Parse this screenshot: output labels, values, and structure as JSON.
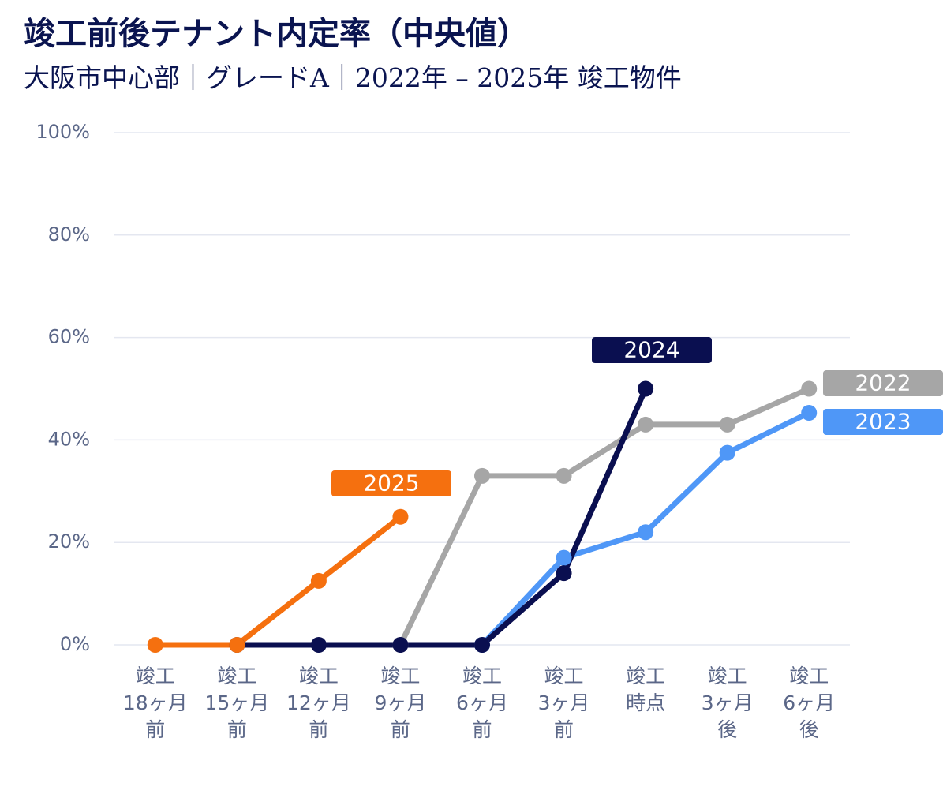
{
  "chart_data": {
    "type": "line",
    "title": "竣工前後テナント内定率（中央値）",
    "subtitle": "大阪市中心部｜グレードA｜2022年 – 2025年 竣工物件",
    "categories": [
      [
        "竣工",
        "18ヶ月",
        "前"
      ],
      [
        "竣工",
        "15ヶ月",
        "前"
      ],
      [
        "竣工",
        "12ヶ月",
        "前"
      ],
      [
        "竣工",
        "9ヶ月",
        "前"
      ],
      [
        "竣工",
        "6ヶ月",
        "前"
      ],
      [
        "竣工",
        "3ヶ月",
        "前"
      ],
      [
        "竣工",
        "時点"
      ],
      [
        "竣工",
        "3ヶ月",
        "後"
      ],
      [
        "竣工",
        "6ヶ月",
        "後"
      ]
    ],
    "series": [
      {
        "name": "2022",
        "color": "#a6a6a6",
        "values": [
          null,
          null,
          null,
          0,
          33,
          33,
          43,
          43,
          50
        ]
      },
      {
        "name": "2023",
        "color": "#4f97f7",
        "values": [
          null,
          null,
          null,
          null,
          0,
          17,
          22,
          37.5,
          45.3
        ]
      },
      {
        "name": "2024",
        "color": "#0a0f50",
        "values": [
          null,
          0,
          0,
          0,
          0,
          14,
          50,
          null,
          null
        ]
      },
      {
        "name": "2025",
        "color": "#f5700f",
        "values": [
          0,
          0,
          12.5,
          25,
          null,
          null,
          null,
          null,
          null
        ]
      }
    ],
    "ylim": [
      0,
      100
    ],
    "yticks": [
      {
        "value": 0,
        "label": "0%"
      },
      {
        "value": 20,
        "label": "20%"
      },
      {
        "value": 40,
        "label": "40%"
      },
      {
        "value": 60,
        "label": "60%"
      },
      {
        "value": 80,
        "label": "80%"
      },
      {
        "value": 100,
        "label": "100%"
      }
    ],
    "grid": true
  }
}
